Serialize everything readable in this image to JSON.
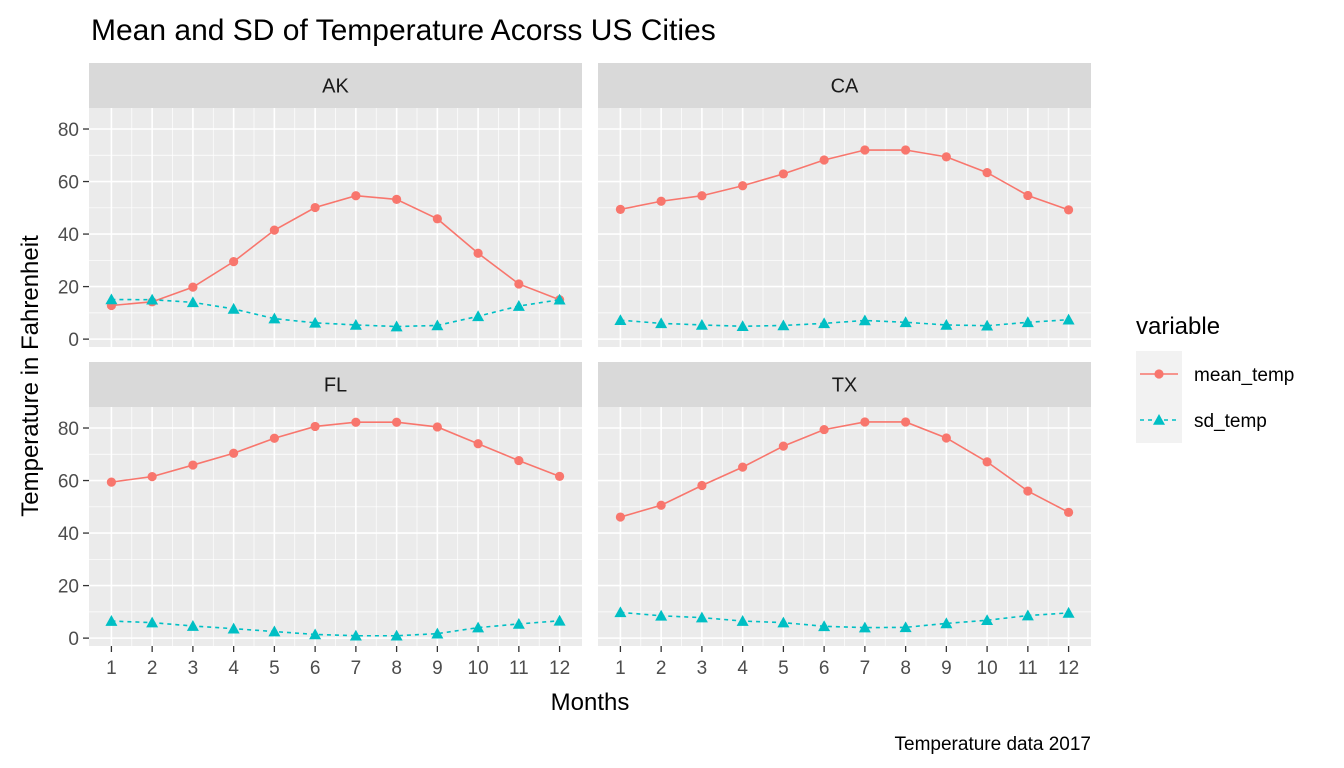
{
  "chart_data": {
    "type": "line",
    "title": "Mean and SD of Temperature Acorss US Cities",
    "xlabel": "Months",
    "ylabel": "Temperature in Fahrenheit",
    "caption": "Temperature data 2017",
    "x": [
      1,
      2,
      3,
      4,
      5,
      6,
      7,
      8,
      9,
      10,
      11,
      12
    ],
    "x_ticks": [
      "1",
      "2",
      "3",
      "4",
      "5",
      "6",
      "7",
      "8",
      "9",
      "10",
      "11",
      "12"
    ],
    "ylim": [
      -3,
      88
    ],
    "y_ticks": [
      0,
      20,
      40,
      60,
      80
    ],
    "y_tick_labels": [
      "0",
      "20",
      "40",
      "60",
      "80"
    ],
    "grid": true,
    "legend": {
      "title": "variable",
      "placement": "right",
      "entries": [
        {
          "name": "mean_temp",
          "color": "#F8766D",
          "marker": "circle",
          "line": "solid"
        },
        {
          "name": "sd_temp",
          "color": "#00BFC4",
          "marker": "triangle",
          "line": "dashed"
        }
      ]
    },
    "panels": [
      {
        "name": "AK",
        "series": [
          {
            "name": "mean_temp",
            "values": [
              12.8,
              14.2,
              19.8,
              29.5,
              41.5,
              50.1,
              54.6,
              53.2,
              45.8,
              32.7,
              21.0,
              15.0
            ]
          },
          {
            "name": "sd_temp",
            "values": [
              15.1,
              15.0,
              14.0,
              11.5,
              7.8,
              6.2,
              5.4,
              4.8,
              5.2,
              8.7,
              12.6,
              15.0
            ]
          }
        ]
      },
      {
        "name": "CA",
        "series": [
          {
            "name": "mean_temp",
            "values": [
              49.4,
              52.5,
              54.6,
              58.4,
              62.9,
              68.2,
              72.0,
              72.0,
              69.4,
              63.4,
              54.7,
              49.2
            ]
          },
          {
            "name": "sd_temp",
            "values": [
              7.2,
              6.0,
              5.4,
              4.9,
              5.2,
              6.0,
              7.1,
              6.4,
              5.4,
              5.1,
              6.4,
              7.4
            ]
          }
        ]
      },
      {
        "name": "FL",
        "series": [
          {
            "name": "mean_temp",
            "values": [
              59.4,
              61.5,
              65.9,
              70.4,
              76.1,
              80.6,
              82.2,
              82.2,
              80.4,
              74.0,
              67.6,
              61.6
            ]
          },
          {
            "name": "sd_temp",
            "values": [
              6.5,
              5.9,
              4.6,
              3.6,
              2.5,
              1.4,
              0.9,
              0.9,
              1.7,
              4.0,
              5.4,
              6.6
            ]
          }
        ]
      },
      {
        "name": "TX",
        "series": [
          {
            "name": "mean_temp",
            "values": [
              46.1,
              50.6,
              58.1,
              65.1,
              73.1,
              79.4,
              82.3,
              82.3,
              76.2,
              67.1,
              56.0,
              47.9
            ]
          },
          {
            "name": "sd_temp",
            "values": [
              9.8,
              8.5,
              7.8,
              6.5,
              5.9,
              4.5,
              4.0,
              4.1,
              5.6,
              6.8,
              8.6,
              9.6
            ]
          }
        ]
      }
    ]
  }
}
